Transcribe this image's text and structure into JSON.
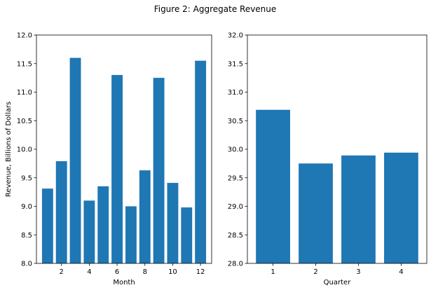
{
  "figure": {
    "title": "Figure 2: Aggregate Revenue"
  },
  "chart_data": [
    {
      "type": "bar",
      "title": "",
      "xlabel": "Month",
      "ylabel": "Revenue, Billions of Dollars",
      "categories": [
        1,
        2,
        3,
        4,
        5,
        6,
        7,
        8,
        9,
        10,
        11,
        12
      ],
      "values": [
        9.31,
        9.79,
        11.6,
        9.1,
        9.35,
        11.3,
        9.0,
        9.63,
        11.25,
        9.41,
        8.98,
        11.55
      ],
      "x_ticks": [
        "2",
        "4",
        "6",
        "8",
        "10",
        "12"
      ],
      "xlim": [
        0.2,
        12.8
      ],
      "ylim": [
        8.0,
        12.0
      ],
      "y_ticks": [
        "8.0",
        "8.5",
        "9.0",
        "9.5",
        "10.0",
        "10.5",
        "11.0",
        "11.5",
        "12.0"
      ],
      "color": "#1f77b4",
      "grid": false
    },
    {
      "type": "bar",
      "title": "",
      "xlabel": "Quarter",
      "ylabel": "",
      "categories": [
        1,
        2,
        3,
        4
      ],
      "values": [
        30.69,
        29.75,
        29.89,
        29.94
      ],
      "x_ticks": [
        "1",
        "2",
        "3",
        "4"
      ],
      "xlim": [
        0.4,
        4.6
      ],
      "ylim": [
        28.0,
        32.0
      ],
      "y_ticks": [
        "28.0",
        "28.5",
        "29.0",
        "29.5",
        "30.0",
        "30.5",
        "31.0",
        "31.5",
        "32.0"
      ],
      "color": "#1f77b4",
      "grid": false
    }
  ]
}
